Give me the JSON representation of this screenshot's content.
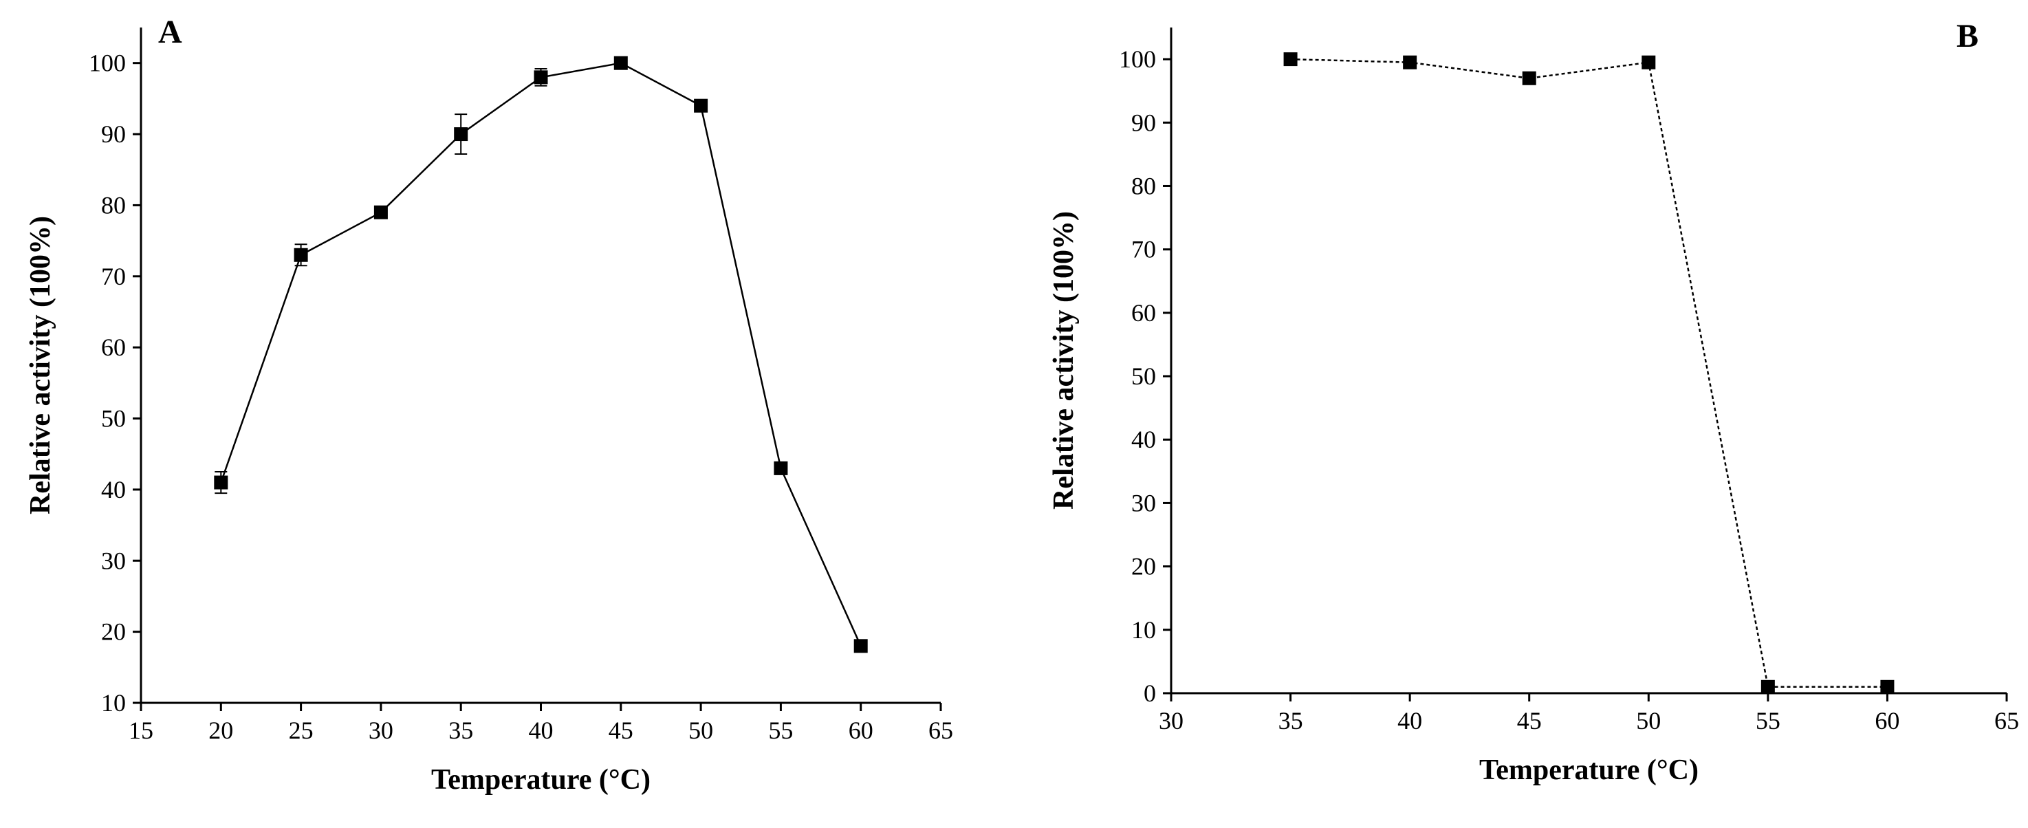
{
  "chart_data": [
    {
      "type": "line",
      "panel_label": "A",
      "xlabel": "Temperature (°C)",
      "ylabel": "Relative activity (100%)",
      "xlim": [
        15,
        65
      ],
      "ylim": [
        10,
        105
      ],
      "xticks": [
        15,
        20,
        25,
        30,
        35,
        40,
        45,
        50,
        55,
        60,
        65
      ],
      "yticks": [
        10,
        20,
        30,
        40,
        50,
        60,
        70,
        80,
        90,
        100
      ],
      "x": [
        20,
        25,
        30,
        35,
        40,
        45,
        50,
        55,
        60
      ],
      "y": [
        41,
        73,
        79,
        90,
        98,
        100,
        94,
        43,
        18
      ],
      "yerr": [
        1.5,
        1.5,
        0.5,
        2.8,
        1.2,
        0.5,
        0.5,
        0.5,
        0.5
      ],
      "marker": "square",
      "grid": false
    },
    {
      "type": "line",
      "panel_label": "B",
      "xlabel": "Temperature (°C)",
      "ylabel": "Relative activity (100%)",
      "xlim": [
        30,
        65
      ],
      "ylim": [
        0,
        105
      ],
      "xticks": [
        30,
        35,
        40,
        45,
        50,
        55,
        60,
        65
      ],
      "yticks": [
        0,
        10,
        20,
        30,
        40,
        50,
        60,
        70,
        80,
        90,
        100
      ],
      "x": [
        35,
        40,
        45,
        50,
        55,
        60
      ],
      "y": [
        100,
        99.5,
        97,
        99.5,
        1,
        1
      ],
      "yerr": [
        0.4,
        0.4,
        0.4,
        0.4,
        0.4,
        0.4
      ],
      "marker": "square",
      "line_style": "dashed",
      "grid": false
    }
  ]
}
